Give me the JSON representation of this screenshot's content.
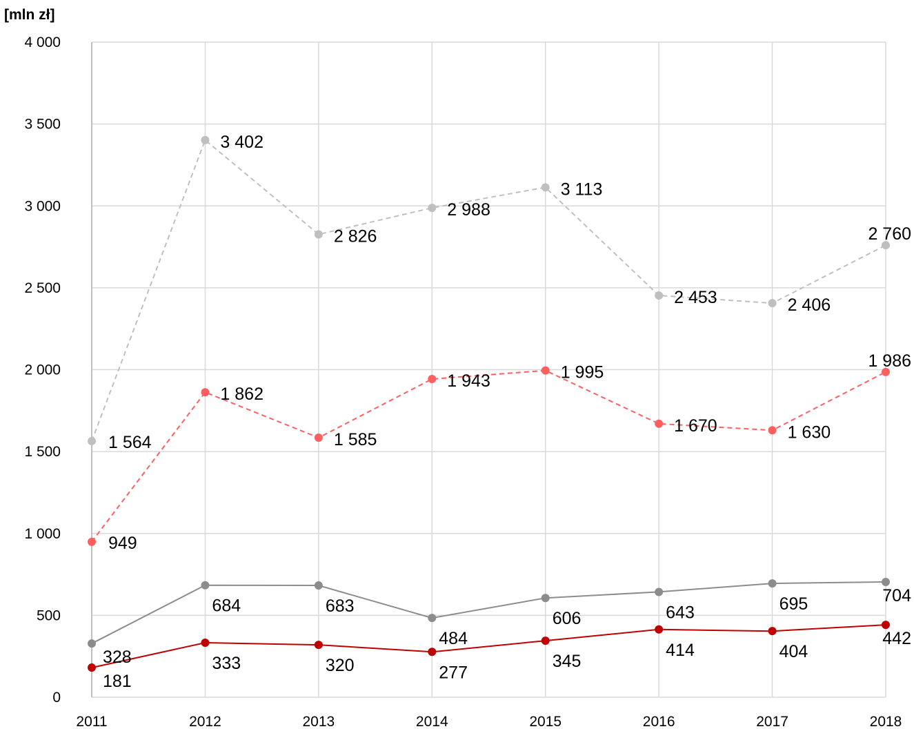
{
  "chart_data": {
    "type": "line",
    "ylabel": "[mln zł]",
    "ylim": [
      0,
      4000
    ],
    "ytick_values": [
      0,
      500,
      1000,
      1500,
      2000,
      2500,
      3000,
      3500,
      4000
    ],
    "ytick_labels": [
      "0",
      "500",
      "1 000",
      "1 500",
      "2 000",
      "2 500",
      "3 000",
      "3 500",
      "4 000"
    ],
    "categories": [
      "2011",
      "2012",
      "2013",
      "2014",
      "2015",
      "2016",
      "2017",
      "2018"
    ],
    "grid": true,
    "legend": "none",
    "series": [
      {
        "values": [
          1564,
          3402,
          2826,
          2988,
          3113,
          2453,
          2406,
          2760
        ],
        "labels": [
          "1 564",
          "3 402",
          "2 826",
          "2 988",
          "3 113",
          "2 453",
          "2 406",
          "2 760"
        ],
        "color": "#bfbfbf",
        "line_style": "dashed"
      },
      {
        "values": [
          949,
          1862,
          1585,
          1943,
          1995,
          1670,
          1630,
          1986
        ],
        "labels": [
          "949",
          "1 862",
          "1 585",
          "1 943",
          "1 995",
          "1 670",
          "1 630",
          "1 986"
        ],
        "color": "#ff5f5f",
        "line_style": "dashed"
      },
      {
        "values": [
          328,
          684,
          683,
          484,
          606,
          643,
          695,
          704
        ],
        "labels": [
          "328",
          "684",
          "683",
          "484",
          "606",
          "643",
          "695",
          "704"
        ],
        "color": "#8c8c8c",
        "line_style": "solid"
      },
      {
        "values": [
          181,
          333,
          320,
          277,
          345,
          414,
          404,
          442
        ],
        "labels": [
          "181",
          "333",
          "320",
          "277",
          "345",
          "414",
          "404",
          "442"
        ],
        "color": "#c00000",
        "line_style": "solid"
      }
    ]
  }
}
